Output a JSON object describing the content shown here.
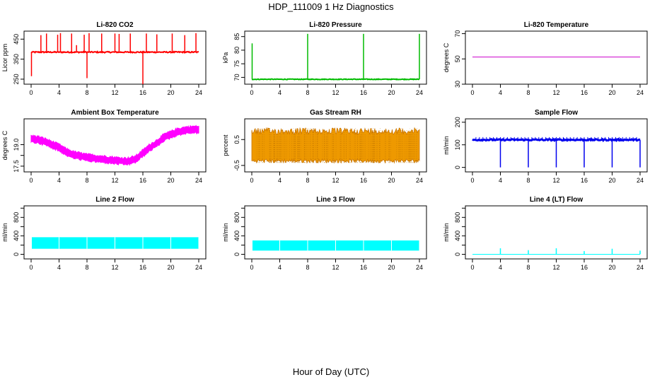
{
  "title": "HDP_111009  1 Hz Diagnostics",
  "xlabel": "Hour of Day (UTC)",
  "chart_data": [
    {
      "type": "line",
      "title": "Li-820 CO2",
      "ylabel": "Licor ppm",
      "xlim": [
        0,
        24
      ],
      "ylim": [
        225,
        490
      ],
      "xticks": [
        0,
        4,
        8,
        12,
        16,
        20,
        24
      ],
      "yticks": [
        250,
        350,
        450
      ],
      "ytick_labels": [
        "250",
        "350",
        "450"
      ],
      "color": "#ff0000",
      "baseline": 385,
      "spikes": [
        {
          "x": 0.05,
          "y": 265
        },
        {
          "x": 1.4,
          "y": 470
        },
        {
          "x": 2.2,
          "y": 478
        },
        {
          "x": 3.8,
          "y": 472
        },
        {
          "x": 4.2,
          "y": 480
        },
        {
          "x": 5.8,
          "y": 478
        },
        {
          "x": 6.5,
          "y": 420
        },
        {
          "x": 7.6,
          "y": 472
        },
        {
          "x": 8.0,
          "y": 255
        },
        {
          "x": 8.3,
          "y": 480
        },
        {
          "x": 10.1,
          "y": 478
        },
        {
          "x": 12.0,
          "y": 478
        },
        {
          "x": 12.6,
          "y": 476
        },
        {
          "x": 14.2,
          "y": 478
        },
        {
          "x": 16.0,
          "y": 225
        },
        {
          "x": 16.5,
          "y": 478
        },
        {
          "x": 18.0,
          "y": 474
        },
        {
          "x": 20.2,
          "y": 478
        },
        {
          "x": 22.0,
          "y": 470
        },
        {
          "x": 23.6,
          "y": 480
        }
      ]
    },
    {
      "type": "line",
      "title": "Li-820 Pressure",
      "ylabel": "kPa",
      "xlim": [
        0,
        24
      ],
      "ylim": [
        67.5,
        87
      ],
      "xticks": [
        0,
        4,
        8,
        12,
        16,
        20,
        24
      ],
      "yticks": [
        70,
        75,
        80,
        85
      ],
      "ytick_labels": [
        "70",
        "75",
        "80",
        "85"
      ],
      "color": "#00bb00",
      "baseline": 69.3,
      "spikes": [
        {
          "x": 0.05,
          "y": 82.5
        },
        {
          "x": 8.0,
          "y": 86
        },
        {
          "x": 16.0,
          "y": 86
        },
        {
          "x": 24.0,
          "y": 86
        }
      ]
    },
    {
      "type": "line",
      "title": "Li-820 Temperature",
      "ylabel": "degrees C",
      "xlim": [
        0,
        24
      ],
      "ylim": [
        30,
        72
      ],
      "xticks": [
        0,
        4,
        8,
        12,
        16,
        20,
        24
      ],
      "yticks": [
        30,
        50,
        70
      ],
      "ytick_labels": [
        "30",
        "50",
        "70"
      ],
      "color": "#cc00cc",
      "x": [
        0,
        24
      ],
      "y": [
        51.5,
        51.5
      ]
    },
    {
      "type": "line",
      "title": "Ambient Box Temperature",
      "ylabel": "degrees C",
      "xlim": [
        0,
        24
      ],
      "ylim": [
        17.1,
        20.8
      ],
      "xticks": [
        0,
        4,
        8,
        12,
        16,
        20,
        24
      ],
      "yticks": [
        17.5,
        18.25,
        19.0
      ],
      "ytick_labels": [
        "17.5",
        "",
        "19.0"
      ],
      "color": "#ff00ff",
      "x": [
        0,
        1,
        2,
        3,
        4,
        5,
        6,
        7,
        8,
        9,
        10,
        11,
        12,
        13,
        14,
        15,
        16,
        17,
        18,
        19,
        20,
        21,
        22,
        23,
        24
      ],
      "y": [
        19.4,
        19.35,
        19.2,
        19.0,
        18.8,
        18.5,
        18.3,
        18.2,
        18.1,
        18.05,
        18.0,
        17.95,
        17.9,
        17.85,
        17.85,
        18.0,
        18.4,
        18.8,
        19.1,
        19.5,
        19.7,
        19.9,
        20.0,
        20.05,
        20.05
      ],
      "band": 0.45
    },
    {
      "type": "line",
      "title": "Gas Stream RH",
      "ylabel": "percent",
      "xlim": [
        0,
        24
      ],
      "ylim": [
        -0.75,
        1.3
      ],
      "xticks": [
        0,
        4,
        8,
        12,
        16,
        20,
        24
      ],
      "yticks": [
        -0.5,
        0.5
      ],
      "ytick_labels": [
        "-0.5",
        "0.5"
      ],
      "color": "#ee9900",
      "baseline": 0.25,
      "band_low": -0.4,
      "band_high": 0.95
    },
    {
      "type": "line",
      "title": "Sample Flow",
      "ylabel": "ml/min",
      "xlim": [
        0,
        24
      ],
      "ylim": [
        -20,
        215
      ],
      "xticks": [
        0,
        4,
        8,
        12,
        16,
        20,
        24
      ],
      "yticks": [
        0,
        100,
        200
      ],
      "ytick_labels": [
        "0",
        "100",
        "200"
      ],
      "color": "#0000ee",
      "baseline": 122,
      "dips": [
        {
          "x": 4.0,
          "y": 0
        },
        {
          "x": 8.0,
          "y": 0
        },
        {
          "x": 12.0,
          "y": 0
        },
        {
          "x": 16.0,
          "y": 0
        },
        {
          "x": 20.0,
          "y": 0
        },
        {
          "x": 24.0,
          "y": 0
        }
      ]
    },
    {
      "type": "area",
      "title": "Line 2 Flow",
      "ylabel": "ml/min",
      "xlim": [
        0,
        24
      ],
      "ylim": [
        -100,
        1050
      ],
      "xticks": [
        0,
        4,
        8,
        12,
        16,
        20,
        24
      ],
      "yticks": [
        0,
        200,
        400,
        600,
        800,
        1000
      ],
      "ytick_labels": [
        "0",
        "",
        "400",
        "",
        "800",
        ""
      ],
      "color": "#00ffff",
      "band_low": 120,
      "band_high": 370,
      "gaps": [
        4,
        8,
        12,
        16,
        20,
        24
      ]
    },
    {
      "type": "area",
      "title": "Line 3 Flow",
      "ylabel": "ml/min",
      "xlim": [
        0,
        24
      ],
      "ylim": [
        -100,
        1050
      ],
      "xticks": [
        0,
        4,
        8,
        12,
        16,
        20,
        24
      ],
      "yticks": [
        0,
        200,
        400,
        600,
        800,
        1000
      ],
      "ytick_labels": [
        "0",
        "",
        "400",
        "",
        "800",
        ""
      ],
      "color": "#00ffff",
      "band_low": 80,
      "band_high": 300,
      "gaps": [
        4,
        8,
        12,
        16,
        20,
        24
      ]
    },
    {
      "type": "line",
      "title": "Line 4 (LT) Flow",
      "ylabel": "ml/min",
      "xlim": [
        0,
        24
      ],
      "ylim": [
        -100,
        1050
      ],
      "xticks": [
        0,
        4,
        8,
        12,
        16,
        20,
        24
      ],
      "yticks": [
        0,
        200,
        400,
        600,
        800,
        1000
      ],
      "ytick_labels": [
        "0",
        "",
        "400",
        "",
        "800",
        ""
      ],
      "color": "#00ffff",
      "baseline": 0,
      "spikes": [
        {
          "x": 4.0,
          "y": 130
        },
        {
          "x": 8.0,
          "y": 90
        },
        {
          "x": 12.0,
          "y": 130
        },
        {
          "x": 16.0,
          "y": 70
        },
        {
          "x": 20.0,
          "y": 120
        },
        {
          "x": 24.0,
          "y": 80
        }
      ]
    }
  ]
}
